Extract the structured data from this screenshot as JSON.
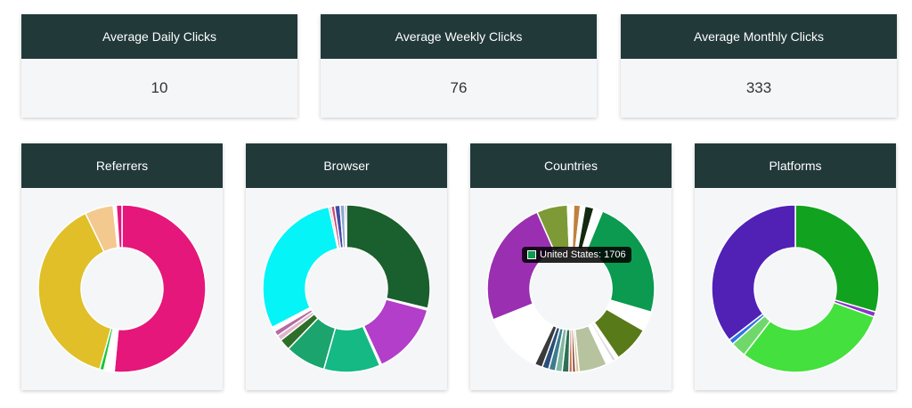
{
  "stats": [
    {
      "label": "Average Daily Clicks",
      "value": "10"
    },
    {
      "label": "Average Weekly Clicks",
      "value": "76"
    },
    {
      "label": "Average Monthly Clicks",
      "value": "333"
    }
  ],
  "charts": [
    {
      "title": "Referrers"
    },
    {
      "title": "Browser"
    },
    {
      "title": "Countries"
    },
    {
      "title": "Platforms"
    }
  ],
  "tooltip": {
    "text": "United States: 1706",
    "color": "#0b9a50"
  },
  "chart_data": [
    {
      "type": "pie",
      "title": "Referrers",
      "donut": true,
      "values": [
        51.5,
        2,
        0.8,
        38.5,
        5.5,
        0.6,
        1.1
      ],
      "colors": [
        "#e5177a",
        "#ffffff",
        "#11c934",
        "#e0bf29",
        "#f3c98f",
        "#ffffff",
        "#e5177a"
      ]
    },
    {
      "type": "pie",
      "title": "Browser",
      "donut": true,
      "values": [
        33,
        0.4,
        16,
        0.4,
        12.5,
        9,
        2.5,
        1.2,
        1.2,
        1,
        33.5,
        0.5,
        0.8,
        1.2,
        1,
        0.4
      ],
      "colors": [
        "#1a5f2e",
        "#ffffff",
        "#b23ec9",
        "#ffffff",
        "#14b984",
        "#1ba46e",
        "#2d6f28",
        "#dfb6ca",
        "#b86aa3",
        "#ffffff",
        "#05f4f7",
        "#f2b0a8",
        "#c2487a",
        "#414ca3",
        "#8aa6d1",
        "#7f44c0"
      ]
    },
    {
      "type": "pie",
      "title": "Countries",
      "donut": true,
      "values": [
        0.5,
        1.2,
        0.8,
        1.6,
        1.6,
        21.5,
        3.5,
        6.5,
        0.6,
        0.6,
        0.6,
        0.6,
        5,
        0.6,
        0.6,
        0.6,
        1.2,
        1.2,
        1.2,
        1.2,
        1.4,
        1.3,
        1.3,
        1.3,
        0.9,
        0.9,
        3.2,
        2,
        22.5,
        5.5,
        0.6
      ],
      "colors": [
        "#ffffff",
        "#c0813e",
        "#ffffff",
        "#122a10",
        "#ffffff",
        "#0b9a50",
        "#ffffff",
        "#587a18",
        "#ffffff",
        "#d8d8d8",
        "#ffffff",
        "#ffffff",
        "#b7c39e",
        "#d8c79e",
        "#8b4b3a",
        "#c46a4a",
        "#2f6e57",
        "#7fb79e",
        "#3c7d8e",
        "#2c4e7a",
        "#3a3a3a",
        "#ffffff",
        "#ffffff",
        "#ffffff",
        "#ffffff",
        "#ffffff",
        "#ffffff",
        "#ffffff",
        "#9a2fb1",
        "#7d9a36",
        "#ffffff"
      ]
    },
    {
      "type": "pie",
      "title": "Platforms",
      "donut": true,
      "values": [
        29.5,
        1,
        30,
        3,
        1,
        35.5
      ],
      "colors": [
        "#11a21f",
        "#8a33c6",
        "#44e03e",
        "#70d76a",
        "#2d74e6",
        "#5121b5"
      ]
    }
  ]
}
